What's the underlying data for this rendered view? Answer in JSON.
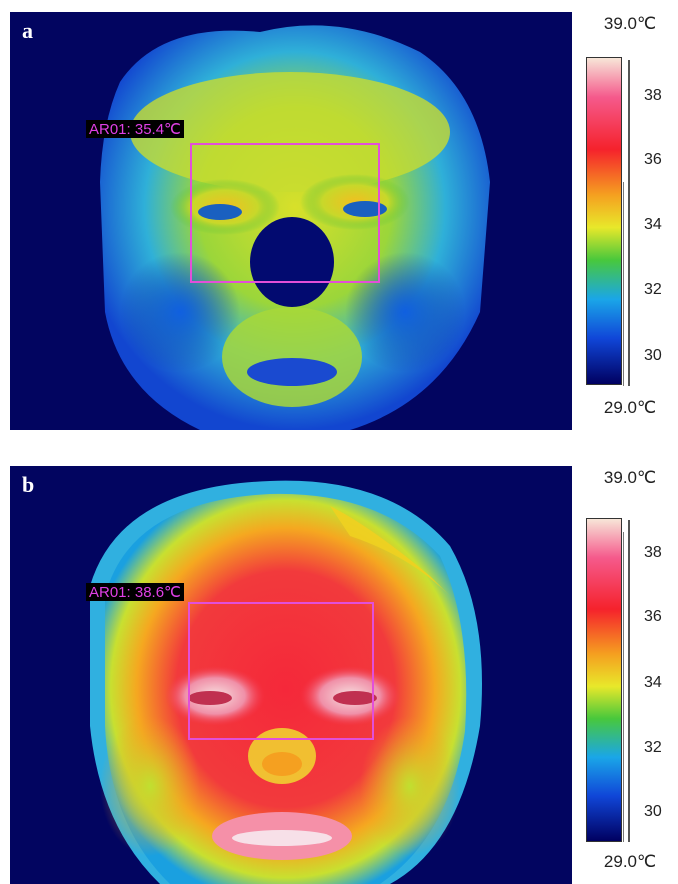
{
  "panels": [
    {
      "letter": "a",
      "roi_label": "AR01: 35.4℃",
      "scale_max": "39.0℃",
      "scale_min": "29.0℃",
      "ticks": [
        "38",
        "36",
        "34",
        "32",
        "30"
      ],
      "palette": [
        "#f7e6d8",
        "#f55a8c",
        "#f5222c",
        "#f5a020",
        "#e8e82a",
        "#48c83c",
        "#1aa6e8",
        "#1046d8",
        "#000060"
      ],
      "background": "#020560"
    },
    {
      "letter": "b",
      "roi_label": "AR01: 38.6℃",
      "scale_max": "39.0℃",
      "scale_min": "29.0℃",
      "ticks": [
        "38",
        "36",
        "34",
        "32",
        "30"
      ],
      "palette": [
        "#f7e6d8",
        "#f55a8c",
        "#f5222c",
        "#f5a020",
        "#e8e82a",
        "#48c83c",
        "#1aa6e8",
        "#1046d8",
        "#000060"
      ],
      "background": "#020560"
    }
  ]
}
